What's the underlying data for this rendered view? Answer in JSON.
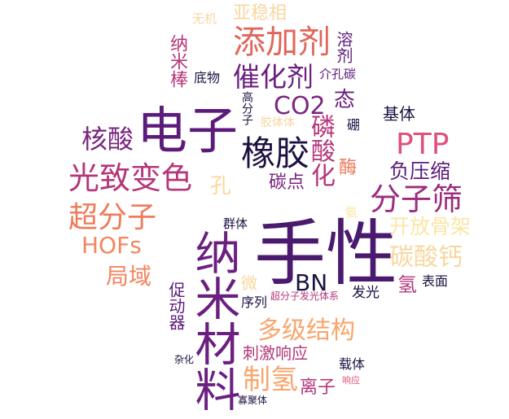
{
  "words": [
    {
      "text": "手性",
      "color": "#4a1a6e"
    },
    {
      "text": "电子",
      "color": "#5c1b7a"
    },
    {
      "text": "纳米材料",
      "color": "#6b1f7f"
    },
    {
      "text": "橡胶",
      "color": "#1c1140"
    },
    {
      "text": "添加剂",
      "color": "#e0665c"
    },
    {
      "text": "光致变色",
      "color": "#b5367a"
    },
    {
      "text": "分子筛",
      "color": "#9c2d7e"
    },
    {
      "text": "超分子",
      "color": "#f07a5a"
    },
    {
      "text": "PTP",
      "color": "#e0507a"
    },
    {
      "text": "催化剂",
      "color": "#6b1f7f"
    },
    {
      "text": "核酸",
      "color": "#7a2680"
    },
    {
      "text": "CO2",
      "color": "#7a2680"
    },
    {
      "text": "磷酸化",
      "color": "#b5367a"
    },
    {
      "text": "多级结构",
      "color": "#f8a66c"
    },
    {
      "text": "制氢",
      "color": "#f8a66c"
    },
    {
      "text": "HOFs",
      "color": "#f3855f"
    },
    {
      "text": "局域",
      "color": "#f3855f"
    },
    {
      "text": "碳酸钙",
      "color": "#f8d6a0"
    },
    {
      "text": "BN",
      "color": "#1c1140"
    },
    {
      "text": "负压缩",
      "color": "#5c1b7a"
    },
    {
      "text": "开放骨架",
      "color": "#fbe6a6"
    },
    {
      "text": "亚稳相",
      "color": "#f8d6a0"
    },
    {
      "text": "态",
      "color": "#6b1f7f"
    },
    {
      "text": "碳点",
      "color": "#7a2680"
    },
    {
      "text": "酶",
      "color": "#f07a5a"
    },
    {
      "text": "孔",
      "color": "#fbd79c"
    },
    {
      "text": "纳米棒",
      "color": "#b5367a"
    },
    {
      "text": "溶剂",
      "color": "#5c1b7a"
    },
    {
      "text": "基体",
      "color": "#1c1140"
    },
    {
      "text": "氢",
      "color": "#b5367a"
    },
    {
      "text": "刺激响应",
      "color": "#b5367a"
    },
    {
      "text": "促动器",
      "color": "#5c1b7a"
    },
    {
      "text": "离子",
      "color": "#b5367a"
    },
    {
      "text": "无机",
      "color": "#f8d6a0"
    },
    {
      "text": "底物",
      "color": "#1c1140"
    },
    {
      "text": "介孔碳",
      "color": "#5c1b7a"
    },
    {
      "text": "高分子",
      "color": "#1c1140"
    },
    {
      "text": "胶体体",
      "color": "#f8d6a0"
    },
    {
      "text": "硼",
      "color": "#1c1140"
    },
    {
      "text": "群体",
      "color": "#1c1140"
    },
    {
      "text": "氨",
      "color": "#fbe6a6"
    },
    {
      "text": "微",
      "color": "#fbd79c"
    },
    {
      "text": "序列",
      "color": "#1c1140"
    },
    {
      "text": "超分子发光体系",
      "color": "#b5367a"
    },
    {
      "text": "发光",
      "color": "#1c1140"
    },
    {
      "text": "表面",
      "color": "#1c1140"
    },
    {
      "text": "载体",
      "color": "#1c1140"
    },
    {
      "text": "杂化",
      "color": "#1c1140"
    },
    {
      "text": "响应",
      "color": "#e0507a"
    },
    {
      "text": "寡聚体",
      "color": "#1c1140"
    }
  ]
}
